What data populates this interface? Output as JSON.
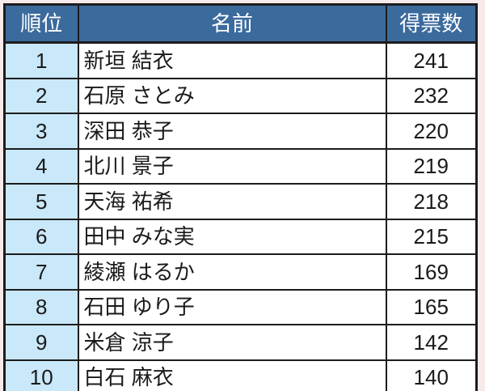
{
  "chart_data": {
    "type": "table",
    "columns": [
      "順位",
      "名前",
      "得票数"
    ],
    "rows": [
      {
        "rank": "1",
        "name": "新垣 結衣",
        "votes": "241"
      },
      {
        "rank": "2",
        "name": "石原 さとみ",
        "votes": "232"
      },
      {
        "rank": "3",
        "name": "深田 恭子",
        "votes": "220"
      },
      {
        "rank": "4",
        "name": "北川 景子",
        "votes": "219"
      },
      {
        "rank": "5",
        "name": "天海 祐希",
        "votes": "218"
      },
      {
        "rank": "6",
        "name": "田中 みな実",
        "votes": "215"
      },
      {
        "rank": "7",
        "name": "綾瀬 はるか",
        "votes": "169"
      },
      {
        "rank": "8",
        "name": "石田 ゆり子",
        "votes": "165"
      },
      {
        "rank": "9",
        "name": "米倉 涼子",
        "votes": "142"
      },
      {
        "rank": "10",
        "name": "白石 麻衣",
        "votes": "140"
      }
    ],
    "layout": {
      "grid": true,
      "header_position": "top"
    }
  },
  "colors": {
    "header_bg": "#3b6a9d",
    "header_text": "#ffffff",
    "rank_cell_bg": "#c9e8fa",
    "body_cell_bg": "#ffffff",
    "border": "#1c1c1c",
    "text": "#1a1a1a",
    "page_bg": "#f7eaea"
  }
}
